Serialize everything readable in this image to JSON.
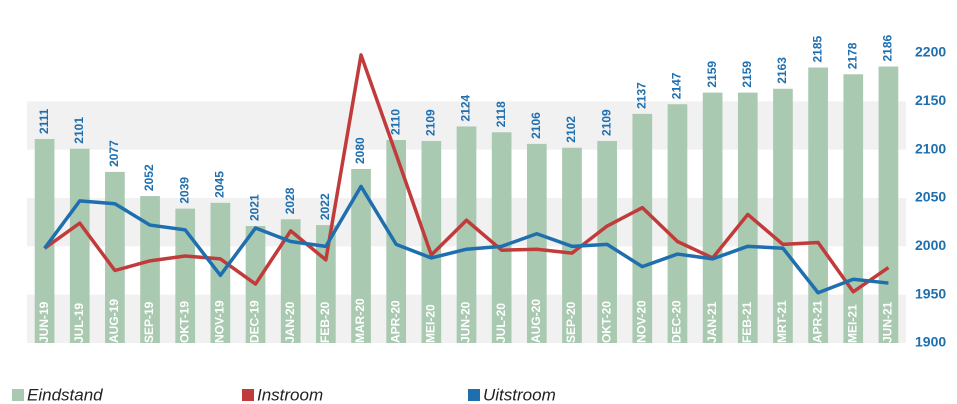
{
  "chart_data": {
    "type": "bar",
    "categories": [
      "JUN-19",
      "JUL-19",
      "AUG-19",
      "SEP-19",
      "OKT-19",
      "NOV-19",
      "DEC-19",
      "JAN-20",
      "FEB-20",
      "MAR-20",
      "APR-20",
      "MEI-20",
      "JUN-20",
      "JUL-20",
      "AUG-20",
      "SEP-20",
      "OKT-20",
      "NOV-20",
      "DEC-20",
      "JAN-21",
      "FEB-21",
      "MRT-21",
      "APR-21",
      "MEI-21",
      "JUN-21"
    ],
    "series": [
      {
        "name": "Eindstand",
        "type": "bar",
        "color": "#a9c9b1",
        "values": [
          2111,
          2101,
          2077,
          2052,
          2039,
          2045,
          2021,
          2028,
          2022,
          2080,
          2110,
          2109,
          2124,
          2118,
          2106,
          2102,
          2109,
          2137,
          2147,
          2159,
          2159,
          2163,
          2185,
          2178,
          2186
        ]
      },
      {
        "name": "Instroom",
        "type": "line",
        "color": "#c23b3b",
        "values": [
          1998,
          2024,
          1975,
          1985,
          1990,
          1987,
          1961,
          2016,
          1986,
          2198,
          2095,
          1991,
          2027,
          1996,
          1997,
          1993,
          2021,
          2040,
          2005,
          1988,
          2033,
          2002,
          2004,
          1953,
          1978
        ]
      },
      {
        "name": "Uitstroom",
        "type": "line",
        "color": "#1f6faf",
        "values": [
          1998,
          2047,
          2044,
          2022,
          2017,
          1970,
          2019,
          2005,
          2000,
          2062,
          2002,
          1988,
          1997,
          2000,
          2013,
          2000,
          2002,
          1979,
          1992,
          1987,
          2000,
          1998,
          1952,
          1966,
          1962
        ]
      }
    ],
    "ylim": [
      1900,
      2200
    ],
    "yticks": [
      1900,
      1950,
      2000,
      2050,
      2100,
      2150,
      2200
    ],
    "bands": true,
    "legend": "bottom"
  }
}
